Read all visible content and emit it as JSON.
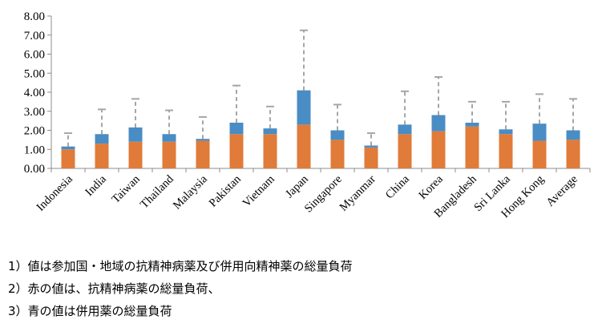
{
  "chart_data": {
    "type": "bar",
    "stacked": true,
    "title": "",
    "xlabel": "",
    "ylabel": "",
    "ylim": [
      0,
      8
    ],
    "yticks": [
      "0.00",
      "1.00",
      "2.00",
      "3.00",
      "4.00",
      "5.00",
      "6.00",
      "7.00",
      "8.00"
    ],
    "grid": false,
    "categories": [
      "Indonesia",
      "India",
      "Taiwan",
      "Thailand",
      "Malaysia",
      "Pakistan",
      "Vietnam",
      "Japan",
      "Singapore",
      "Myanmar",
      "China",
      "Korea",
      "Bangladesh",
      "Sri Lanka",
      "Hong Kong",
      "Average"
    ],
    "series": [
      {
        "name": "抗精神病薬",
        "color": "#E07B39",
        "values": [
          1.0,
          1.3,
          1.4,
          1.4,
          1.45,
          1.8,
          1.8,
          2.3,
          1.5,
          1.1,
          1.8,
          1.95,
          2.2,
          1.8,
          1.45,
          1.5
        ]
      },
      {
        "name": "併用薬",
        "color": "#4A8CC4",
        "values": [
          0.15,
          0.5,
          0.75,
          0.4,
          0.1,
          0.6,
          0.3,
          1.8,
          0.5,
          0.1,
          0.5,
          0.85,
          0.2,
          0.25,
          0.9,
          0.5
        ]
      }
    ],
    "error_upper": [
      1.85,
      3.1,
      3.65,
      3.05,
      2.7,
      4.35,
      3.25,
      7.25,
      3.35,
      1.85,
      4.05,
      4.8,
      3.5,
      3.5,
      3.9,
      3.65
    ],
    "error_color": "#A6A6A6"
  },
  "notes": [
    "1）値は参加国・地域の抗精神病薬及び併用向精神薬の総量負荷",
    "2）赤の値は、抗精神病薬の総量負荷、",
    "3）青の値は併用薬の総量負荷"
  ]
}
